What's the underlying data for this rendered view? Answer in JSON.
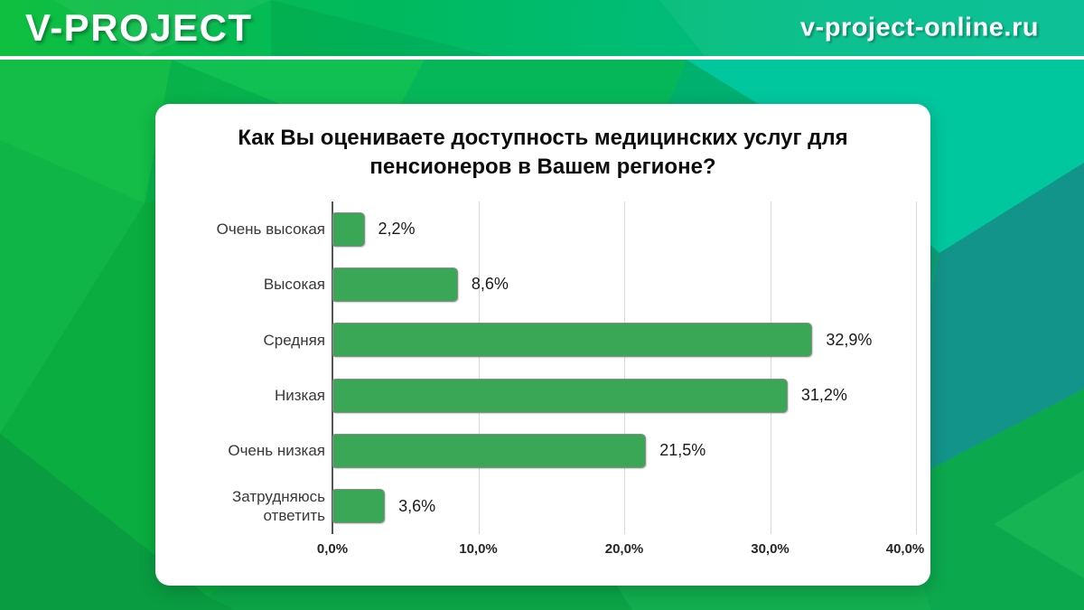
{
  "header": {
    "brand": "V-PROJECT",
    "site": "v-project-online.ru"
  },
  "chart_data": {
    "type": "bar",
    "orientation": "horizontal",
    "title": "Как Вы оцениваете доступность медицинских услуг для пенсионеров в Вашем регионе?",
    "categories": [
      "Очень высокая",
      "Высокая",
      "Средняя",
      "Низкая",
      "Очень низкая",
      "Затрудняюсь ответить"
    ],
    "values": [
      2.2,
      8.6,
      32.9,
      31.2,
      21.5,
      3.6
    ],
    "value_labels": [
      "2,2%",
      "8,6%",
      "32,9%",
      "31,2%",
      "21,5%",
      "3,6%"
    ],
    "x_tick_labels": [
      "0,0%",
      "10,0%",
      "20,0%",
      "30,0%",
      "40,0%"
    ],
    "xlim": [
      0,
      40
    ],
    "grid": "vertical",
    "legend": false,
    "bar_color": "#3aa757",
    "bar_border_color": "#8c8c8c",
    "axis_color": "#555555",
    "gridline_color": "#d9d9d9"
  }
}
